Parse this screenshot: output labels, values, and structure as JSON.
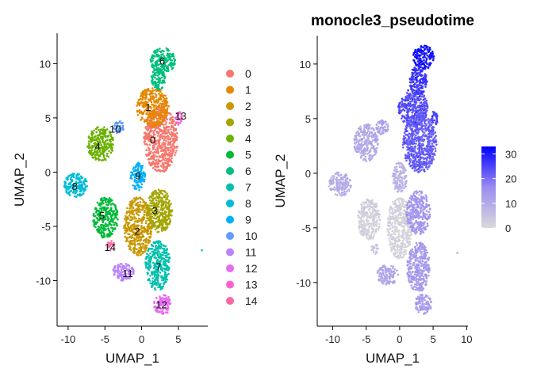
{
  "chart_data": [
    {
      "type": "scatter",
      "title": "",
      "xlabel": "UMAP_1",
      "ylabel": "UMAP_2",
      "xlim": [
        -11.5,
        9
      ],
      "ylim": [
        -14.2,
        12.8
      ],
      "xticks": [
        -10,
        -5,
        0,
        5
      ],
      "yticks": [
        -10,
        -5,
        0,
        5,
        10
      ],
      "grid": false,
      "legend_position": "right",
      "series": [
        {
          "name": "0",
          "color": "#F8766D",
          "cluster_label": {
            "text": "0",
            "x": 1.5,
            "y": 3
          },
          "blobs": [
            {
              "cx": 2.6,
              "cy": 3.0,
              "rx": 2.3,
              "ry": 3.0
            }
          ]
        },
        {
          "name": "1",
          "color": "#E58700",
          "cluster_label": {
            "text": "1",
            "x": 0.9,
            "y": 6
          },
          "blobs": [
            {
              "cx": 1.5,
              "cy": 6.0,
              "rx": 2.2,
              "ry": 1.8
            }
          ]
        },
        {
          "name": "2",
          "color": "#C99800",
          "cluster_label": {
            "text": "2",
            "x": -0.6,
            "y": -5.4
          },
          "blobs": [
            {
              "cx": -0.5,
              "cy": -5.0,
              "rx": 1.9,
              "ry": 2.7
            }
          ]
        },
        {
          "name": "3",
          "color": "#A3A500",
          "cluster_label": {
            "text": "3",
            "x": 1.8,
            "y": -3.5
          },
          "blobs": [
            {
              "cx": 2.4,
              "cy": -3.6,
              "rx": 1.8,
              "ry": 2.0
            }
          ]
        },
        {
          "name": "4",
          "color": "#6BB100",
          "cluster_label": {
            "text": "4",
            "x": -6.0,
            "y": 2.4
          },
          "blobs": [
            {
              "cx": -5.6,
              "cy": 2.6,
              "rx": 1.8,
              "ry": 1.6
            }
          ]
        },
        {
          "name": "5",
          "color": "#00BA38",
          "cluster_label": {
            "text": "5",
            "x": -5.4,
            "y": -4.0
          },
          "blobs": [
            {
              "cx": -4.9,
              "cy": -4.2,
              "rx": 1.7,
              "ry": 1.9
            }
          ]
        },
        {
          "name": "6",
          "color": "#00BF7D",
          "cluster_label": {
            "text": "6",
            "x": 2.8,
            "y": 10.3
          },
          "blobs": [
            {
              "cx": 2.9,
              "cy": 10.3,
              "rx": 1.7,
              "ry": 1.2
            },
            {
              "cx": 2.3,
              "cy": 8.6,
              "rx": 1.0,
              "ry": 1.0
            }
          ]
        },
        {
          "name": "7",
          "color": "#00C0AF",
          "cluster_label": {
            "text": "7",
            "x": 2.3,
            "y": -8.7
          },
          "blobs": [
            {
              "cx": 2.2,
              "cy": -8.6,
              "rx": 1.7,
              "ry": 2.3
            }
          ]
        },
        {
          "name": "8",
          "color": "#00BCD8",
          "cluster_label": {
            "text": "8",
            "x": -9.1,
            "y": -1.3
          },
          "blobs": [
            {
              "cx": -9.0,
              "cy": -1.2,
              "rx": 1.6,
              "ry": 1.1
            }
          ]
        },
        {
          "name": "9",
          "color": "#00B0F6",
          "cluster_label": {
            "text": "9",
            "x": -0.5,
            "y": -0.3
          },
          "blobs": [
            {
              "cx": -0.5,
              "cy": -0.4,
              "rx": 1.0,
              "ry": 1.3
            }
          ]
        },
        {
          "name": "10",
          "color": "#619CFF",
          "cluster_label": {
            "text": "10",
            "x": -3.6,
            "y": 4.0
          },
          "blobs": [
            {
              "cx": -3.1,
              "cy": 4.1,
              "rx": 0.8,
              "ry": 0.6
            }
          ]
        },
        {
          "name": "11",
          "color": "#B983FF",
          "cluster_label": {
            "text": "11",
            "x": -1.9,
            "y": -9.3
          },
          "blobs": [
            {
              "cx": -2.5,
              "cy": -9.2,
              "rx": 1.5,
              "ry": 0.8
            }
          ]
        },
        {
          "name": "12",
          "color": "#E76BF3",
          "cluster_label": {
            "text": "12",
            "x": 2.7,
            "y": -12.2
          },
          "blobs": [
            {
              "cx": 2.9,
              "cy": -12.2,
              "rx": 1.3,
              "ry": 0.9
            }
          ]
        },
        {
          "name": "13",
          "color": "#FD61D1",
          "cluster_label": {
            "text": "13",
            "x": 5.3,
            "y": 5.2
          },
          "blobs": [
            {
              "cx": 5.0,
              "cy": 5.0,
              "rx": 0.5,
              "ry": 0.7
            }
          ]
        },
        {
          "name": "14",
          "color": "#FF67A4",
          "cluster_label": {
            "text": "14",
            "x": -4.3,
            "y": -6.9
          },
          "blobs": [
            {
              "cx": -4.2,
              "cy": -6.8,
              "rx": 0.5,
              "ry": 0.5
            }
          ]
        }
      ]
    },
    {
      "type": "scatter",
      "title": "monocle3_pseudotime",
      "xlabel": "UMAP_1",
      "ylabel": "UMAP_2",
      "xlim": [
        -12.3,
        10.2
      ],
      "ylim": [
        -14.0,
        12.6
      ],
      "xticks": [
        -10,
        -5,
        0,
        5,
        10
      ],
      "yticks": [
        -10,
        -5,
        0,
        5,
        10
      ],
      "grid": false,
      "colorbar": {
        "ticks": [
          0,
          10,
          20,
          30
        ],
        "min": 0,
        "max": 33,
        "low_color": "#D9D9D9",
        "high_color": "#0000FF"
      },
      "regions": [
        {
          "cx": 3.6,
          "cy": 10.6,
          "rx": 1.6,
          "ry": 1.1,
          "value": 31
        },
        {
          "cx": 2.8,
          "cy": 8.5,
          "rx": 1.3,
          "ry": 1.4,
          "value": 27
        },
        {
          "cx": 2.0,
          "cy": 6.0,
          "rx": 2.2,
          "ry": 1.7,
          "value": 24
        },
        {
          "cx": 3.0,
          "cy": 2.8,
          "rx": 2.5,
          "ry": 2.8,
          "value": 22
        },
        {
          "cx": 5.2,
          "cy": 5.0,
          "rx": 0.5,
          "ry": 0.7,
          "value": 25
        },
        {
          "cx": -2.6,
          "cy": 4.2,
          "rx": 0.9,
          "ry": 0.7,
          "value": 12
        },
        {
          "cx": -5.0,
          "cy": 2.8,
          "rx": 1.8,
          "ry": 1.7,
          "value": 10
        },
        {
          "cx": 0.0,
          "cy": -0.4,
          "rx": 1.1,
          "ry": 1.4,
          "value": 8
        },
        {
          "cx": -8.9,
          "cy": -1.0,
          "rx": 1.7,
          "ry": 1.1,
          "value": 9
        },
        {
          "cx": -4.6,
          "cy": -4.2,
          "rx": 1.7,
          "ry": 1.9,
          "value": 2
        },
        {
          "cx": 0.0,
          "cy": -5.0,
          "rx": 1.9,
          "ry": 2.8,
          "value": 1
        },
        {
          "cx": 2.8,
          "cy": -3.6,
          "rx": 1.8,
          "ry": 2.0,
          "value": 14
        },
        {
          "cx": 2.8,
          "cy": -8.6,
          "rx": 1.7,
          "ry": 2.3,
          "value": 13
        },
        {
          "cx": -1.8,
          "cy": -9.3,
          "rx": 1.6,
          "ry": 0.9,
          "value": 11
        },
        {
          "cx": 3.5,
          "cy": -12.0,
          "rx": 1.3,
          "ry": 0.9,
          "value": 12
        },
        {
          "cx": -3.7,
          "cy": -6.9,
          "rx": 0.5,
          "ry": 0.5,
          "value": 4
        }
      ],
      "outliers": [
        {
          "x": 8.6,
          "y": -7.3,
          "value": 10
        }
      ]
    }
  ],
  "outlier_left": {
    "x": 8.2,
    "y": -7.2,
    "color": "#00C0AF"
  }
}
